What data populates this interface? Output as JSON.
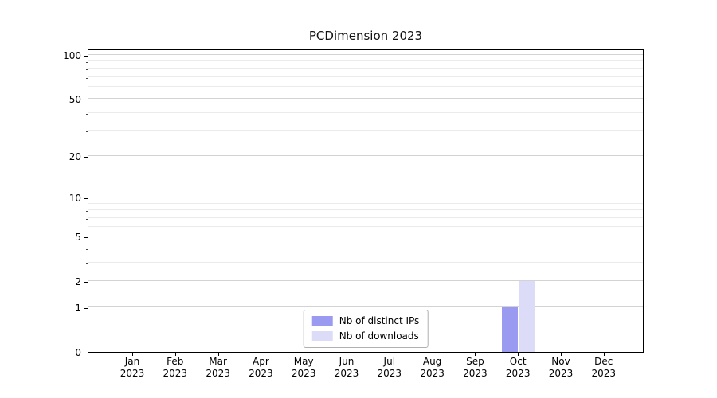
{
  "chart_data": {
    "type": "bar",
    "title": "PCDimension 2023",
    "categories": [
      "Jan",
      "Feb",
      "Mar",
      "Apr",
      "May",
      "Jun",
      "Jul",
      "Aug",
      "Sep",
      "Oct",
      "Nov",
      "Dec"
    ],
    "year_label": "2023",
    "series": [
      {
        "name": "Nb of distinct IPs",
        "color": "#9a9af0",
        "values": [
          0,
          0,
          0,
          0,
          0,
          0,
          0,
          0,
          0,
          1,
          0,
          0
        ]
      },
      {
        "name": "Nb of downloads",
        "color": "#dcdcf8",
        "values": [
          0,
          0,
          0,
          0,
          0,
          0,
          0,
          0,
          0,
          2,
          0,
          0
        ]
      }
    ],
    "y_ticks": [
      0,
      1,
      2,
      5,
      10,
      20,
      50,
      100
    ],
    "y_minor_ticks": [
      3,
      4,
      6,
      7,
      8,
      9,
      30,
      40,
      60,
      70,
      80,
      90
    ],
    "yscale": "log1p",
    "ylim": [
      0,
      110
    ],
    "xlabel": "",
    "ylabel": "",
    "grid": "horizontal",
    "legend_position": "lower center"
  }
}
